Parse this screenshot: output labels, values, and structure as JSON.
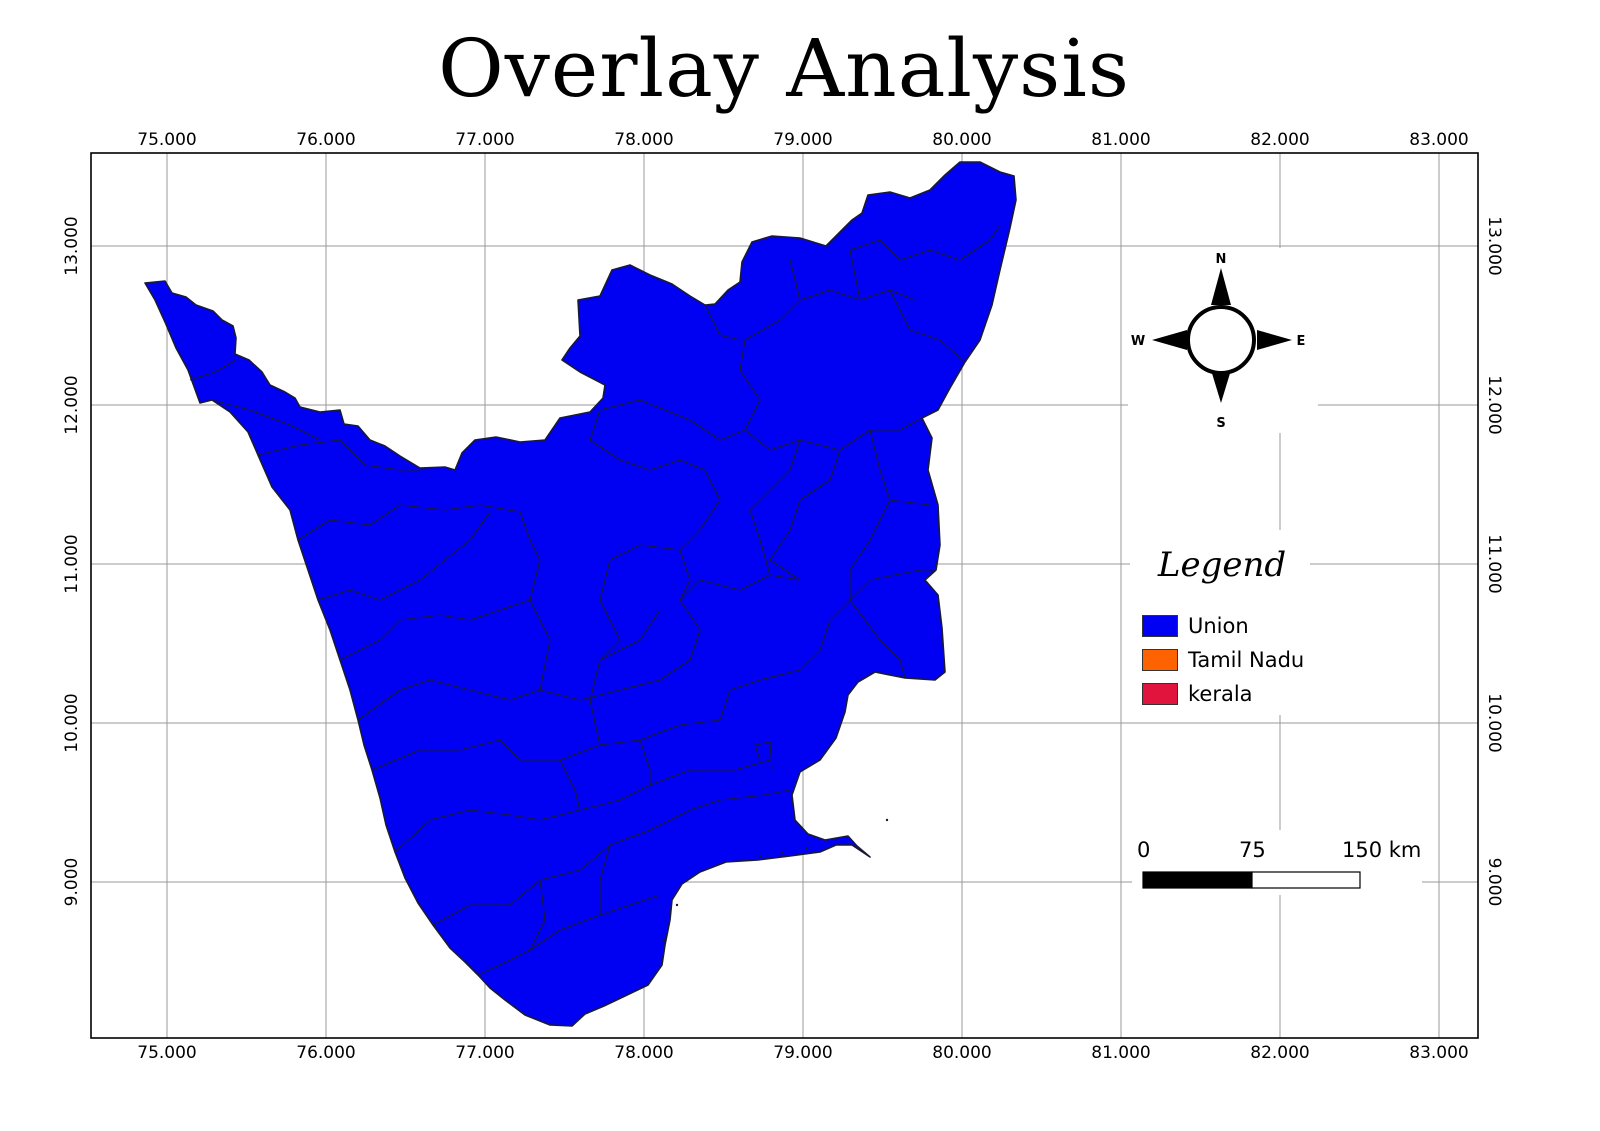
{
  "title": "Overlay Analysis",
  "axes": {
    "longitude_ticks": [
      "75.000",
      "76.000",
      "77.000",
      "78.000",
      "79.000",
      "80.000",
      "81.000",
      "82.000",
      "83.000"
    ],
    "latitude_ticks": [
      "13.000",
      "12.000",
      "11.000",
      "10.000",
      "9.000"
    ]
  },
  "compass": {
    "n": "N",
    "s": "S",
    "e": "E",
    "w": "W"
  },
  "legend": {
    "title": "Legend",
    "items": [
      {
        "label": "Union",
        "color": "#0000f2"
      },
      {
        "label": "Tamil Nadu",
        "color": "#ff6200"
      },
      {
        "label": "kerala",
        "color": "#e0143c"
      }
    ]
  },
  "scale_bar": {
    "labels": [
      "0",
      "75",
      "150 km"
    ]
  },
  "colors": {
    "region_fill": "#0000f2",
    "region_stroke": "#1a1a33",
    "grid": "#9a9a9a",
    "frame": "#000000"
  }
}
